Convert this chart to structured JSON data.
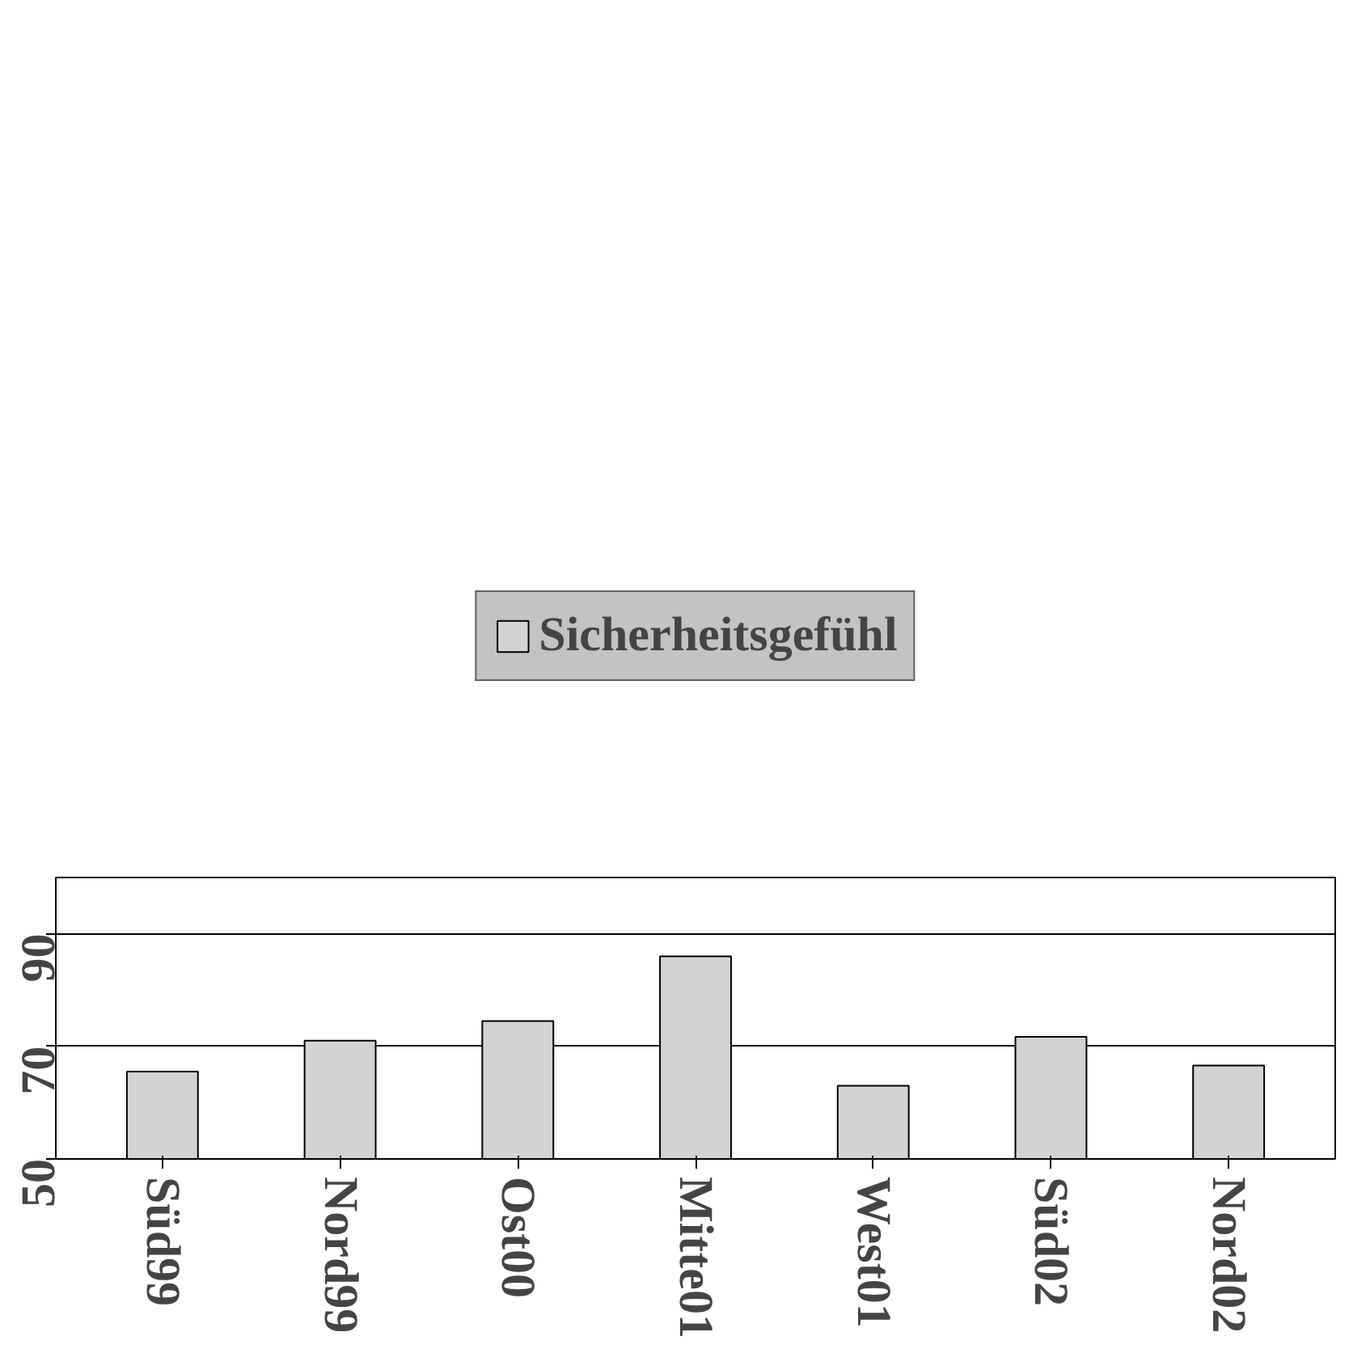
{
  "chart_data": {
    "type": "bar",
    "categories": [
      "Süd99",
      "Nord99",
      "Ost00",
      "Mitte01",
      "West01",
      "Süd02",
      "Nord02"
    ],
    "series": [
      {
        "name": "Sicherheitsgefühl",
        "color": "#d3d3d3",
        "values": [
          65.5,
          71,
          74.5,
          86,
          63,
          71.7,
          66.6
        ]
      }
    ],
    "ylim": [
      50,
      100
    ],
    "yticks": [
      50,
      70,
      90
    ],
    "grid": "y",
    "legend": "top"
  }
}
